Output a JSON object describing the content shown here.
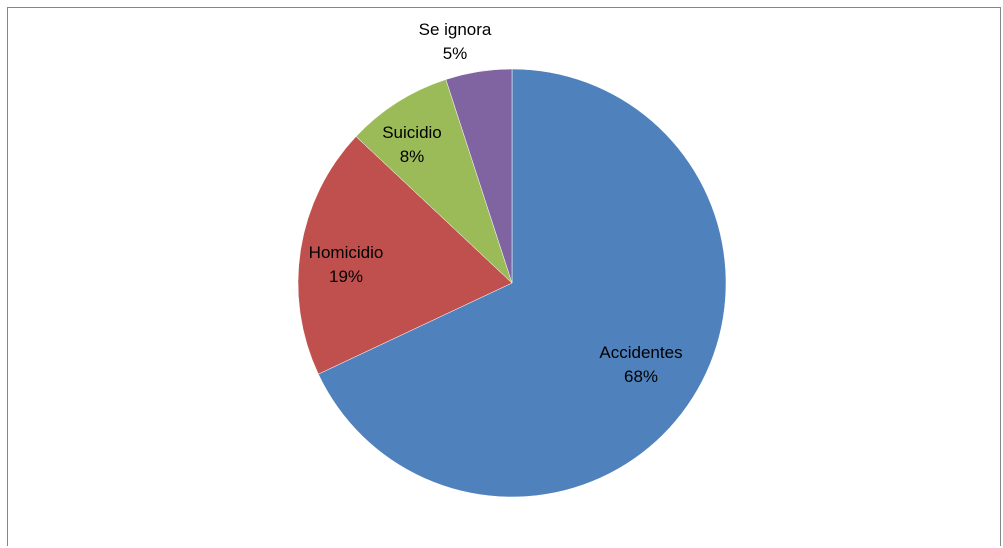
{
  "chart_data": {
    "type": "pie",
    "title": "",
    "legend": "none",
    "slices": [
      {
        "name": "Accidentes",
        "value": 68,
        "label": "68%",
        "color": "#4F81BD"
      },
      {
        "name": "Homicidio",
        "value": 19,
        "label": "19%",
        "color": "#C0504D"
      },
      {
        "name": "Suicidio",
        "value": 8,
        "label": "8%",
        "color": "#9BBB59"
      },
      {
        "name": "Se ignora",
        "value": 5,
        "label": "5%",
        "color": "#8064A2"
      }
    ]
  }
}
